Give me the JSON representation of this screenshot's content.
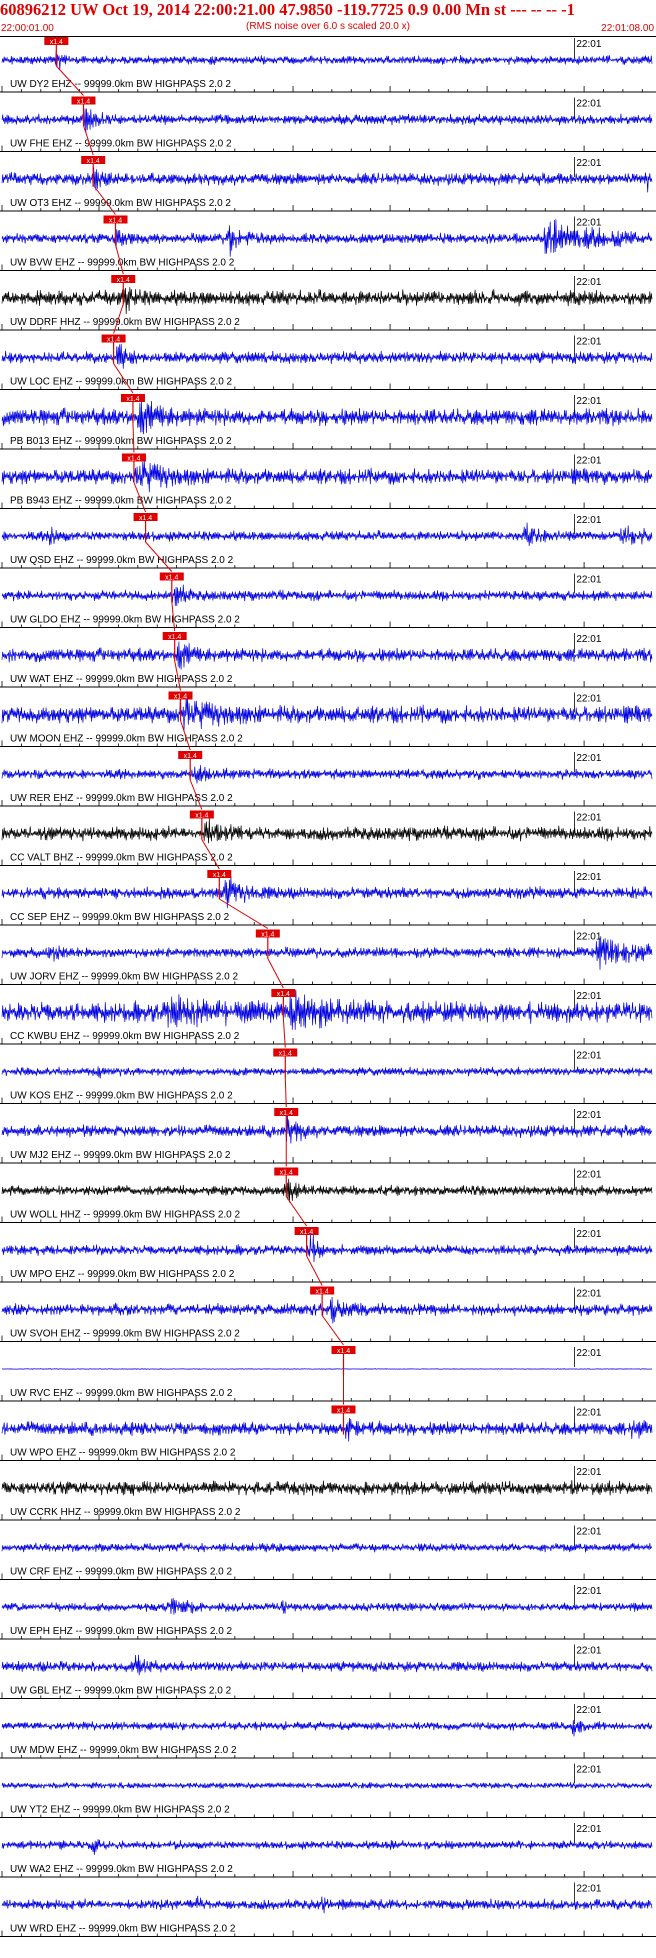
{
  "header": {
    "title": "60896212 UW Oct 19, 2014 22:00:21.00   47.9850 -119.7725  0.9 0.00 Mn st --- -- --   -1",
    "subtitle": "(RMS noise over 6.0 s scaled 20.0 x)",
    "start_time": "22:00:01.00",
    "end_time": "22:01:08.00"
  },
  "colors": {
    "title": "#e00000",
    "trace_blue": "#0000e0",
    "trace_black": "#000000",
    "pick": "#e00000",
    "axis": "#000000"
  },
  "chart_data": {
    "type": "line",
    "x_range_seconds": [
      0,
      67
    ],
    "tick_minor_seconds": 2,
    "tick_major_seconds": 10,
    "minute_mark_label": "22:01",
    "minute_mark_seconds": 59,
    "pick_label": "x1.4",
    "traces": [
      {
        "label": "UW DY2 EHZ -- 99999.0km BW  HIGHPASS  2.0  2",
        "color": "blue",
        "pick_seconds": 5.6,
        "amp": 0.25,
        "events": [
          {
            "t": 5.6,
            "a": 0.9,
            "w": 0.6
          }
        ]
      },
      {
        "label": "UW FHE EHZ -- 99999.0km BW  HIGHPASS  2.0  2",
        "color": "blue",
        "pick_seconds": 8.4,
        "amp": 0.3,
        "events": [
          {
            "t": 8.6,
            "a": 0.9,
            "w": 1.0
          }
        ]
      },
      {
        "label": "UW OT3 EHZ -- 99999.0km BW  HIGHPASS  2.0  2",
        "color": "blue",
        "pick_seconds": 9.4,
        "amp": 0.35,
        "events": [
          {
            "t": 9.5,
            "a": 0.95,
            "w": 1.0
          },
          {
            "t": 66.5,
            "a": 0.6,
            "w": 0.4
          }
        ]
      },
      {
        "label": "UW BVW EHZ -- 99999.0km BW  HIGHPASS  2.0  2",
        "color": "blue",
        "pick_seconds": 11.7,
        "amp": 0.3,
        "events": [
          {
            "t": 11.8,
            "a": 0.8,
            "w": 1.0
          },
          {
            "t": 23.5,
            "a": 0.95,
            "w": 1.2
          },
          {
            "t": 56,
            "a": 0.9,
            "w": 7.0
          }
        ]
      },
      {
        "label": "UW DDRF HHZ -- 99999.0km BW  HIGHPASS  2.0  2",
        "color": "black",
        "pick_seconds": 12.5,
        "amp": 0.45,
        "events": [
          {
            "t": 12.6,
            "a": 1.0,
            "w": 0.8
          }
        ]
      },
      {
        "label": "UW LOC EHZ -- 99999.0km BW  HIGHPASS  2.0  2",
        "color": "blue",
        "pick_seconds": 11.5,
        "amp": 0.35,
        "events": [
          {
            "t": 12.0,
            "a": 0.9,
            "w": 1.0
          }
        ]
      },
      {
        "label": "PB B013 EHZ -- 99999.0km BW  HIGHPASS  2.0  2",
        "color": "blue",
        "pick_seconds": 13.5,
        "amp": 0.5,
        "events": [
          {
            "t": 14.0,
            "a": 1.0,
            "w": 2.5
          }
        ]
      },
      {
        "label": "PB B943 EHZ -- 99999.0km BW  HIGHPASS  2.0  2",
        "color": "blue",
        "pick_seconds": 13.6,
        "amp": 0.45,
        "events": [
          {
            "t": 14.0,
            "a": 1.0,
            "w": 2.5
          }
        ]
      },
      {
        "label": "UW QSD EHZ -- 99999.0km BW  HIGHPASS  2.0  2",
        "color": "blue",
        "pick_seconds": 14.8,
        "amp": 0.3,
        "events": [
          {
            "t": 5.0,
            "a": 0.5,
            "w": 0.8
          },
          {
            "t": 54,
            "a": 0.6,
            "w": 1.5
          },
          {
            "t": 64,
            "a": 0.85,
            "w": 2.0
          }
        ]
      },
      {
        "label": "UW GLDO EHZ -- 99999.0km BW  HIGHPASS  2.0  2",
        "color": "blue",
        "pick_seconds": 17.5,
        "amp": 0.3,
        "events": [
          {
            "t": 17.8,
            "a": 1.0,
            "w": 1.0
          }
        ]
      },
      {
        "label": "UW WAT EHZ -- 99999.0km BW  HIGHPASS  2.0  2",
        "color": "blue",
        "pick_seconds": 17.8,
        "amp": 0.4,
        "events": [
          {
            "t": 18.2,
            "a": 0.8,
            "w": 1.5
          }
        ]
      },
      {
        "label": "UW MOON EHZ -- 99999.0km BW  HIGHPASS  2.0  2",
        "color": "blue",
        "pick_seconds": 18.4,
        "amp": 0.5,
        "events": [
          {
            "t": 18.5,
            "a": 1.0,
            "w": 3.0
          }
        ]
      },
      {
        "label": "UW RER EHZ -- 99999.0km BW  HIGHPASS  2.0  2",
        "color": "blue",
        "pick_seconds": 19.4,
        "amp": 0.3,
        "events": [
          {
            "t": 20,
            "a": 0.5,
            "w": 2.0
          }
        ]
      },
      {
        "label": "CC VALT BHZ -- 99999.0km BW  HIGHPASS  2.0  2",
        "color": "black",
        "pick_seconds": 20.6,
        "amp": 0.4,
        "events": [
          {
            "t": 21.0,
            "a": 0.8,
            "w": 1.5
          }
        ]
      },
      {
        "label": "CC SEP EHZ -- 99999.0km BW  HIGHPASS  2.0  2",
        "color": "blue",
        "pick_seconds": 22.4,
        "amp": 0.35,
        "events": [
          {
            "t": 23.0,
            "a": 0.9,
            "w": 2.0
          }
        ]
      },
      {
        "label": "UW JORV EHZ -- 99999.0km BW  HIGHPASS  2.0  2",
        "color": "blue",
        "pick_seconds": 27.4,
        "amp": 0.3,
        "events": [
          {
            "t": 5.0,
            "a": 0.4,
            "w": 1.5
          },
          {
            "t": 61,
            "a": 1.0,
            "w": 4.5
          }
        ]
      },
      {
        "label": "CC KWBU EHZ -- 99999.0km BW  HIGHPASS  2.0  2",
        "color": "blue",
        "pick_seconds": 29.0,
        "amp": 0.6,
        "events": [
          {
            "t": 29.5,
            "a": 1.0,
            "w": 4.0
          },
          {
            "t": 17,
            "a": 0.7,
            "w": 6.0
          }
        ]
      },
      {
        "label": "UW KOS EHZ -- 99999.0km BW  HIGHPASS  2.0  2",
        "color": "blue",
        "pick_seconds": 29.2,
        "amp": 0.25,
        "events": [
          {
            "t": 10,
            "a": 0.4,
            "w": 0.3
          }
        ]
      },
      {
        "label": "UW MJ2 EHZ -- 99999.0km BW  HIGHPASS  2.0  2",
        "color": "blue",
        "pick_seconds": 29.3,
        "amp": 0.35,
        "events": [
          {
            "t": 29.4,
            "a": 0.9,
            "w": 1.2
          }
        ]
      },
      {
        "label": "UW WOLL HHZ -- 99999.0km BW  HIGHPASS  2.0  2",
        "color": "black",
        "pick_seconds": 29.3,
        "amp": 0.3,
        "events": [
          {
            "t": 29.4,
            "a": 0.7,
            "w": 1.0
          }
        ]
      },
      {
        "label": "UW MPO EHZ -- 99999.0km BW  HIGHPASS  2.0  2",
        "color": "blue",
        "pick_seconds": 31.4,
        "amp": 0.3,
        "events": [
          {
            "t": 31.8,
            "a": 1.0,
            "w": 1.0
          }
        ]
      },
      {
        "label": "UW SVOH EHZ -- 99999.0km BW  HIGHPASS  2.0  2",
        "color": "blue",
        "pick_seconds": 33.0,
        "amp": 0.35,
        "events": [
          {
            "t": 33.8,
            "a": 0.6,
            "w": 1.5
          }
        ]
      },
      {
        "label": "UW RVC EHZ -- 99999.0km BW  HIGHPASS  2.0  2",
        "color": "blue",
        "pick_seconds": 35.2,
        "amp": 0.02,
        "events": []
      },
      {
        "label": "UW WPO EHZ -- 99999.0km BW  HIGHPASS  2.0  2",
        "color": "blue",
        "pick_seconds": 35.2,
        "amp": 0.4,
        "events": [
          {
            "t": 35.5,
            "a": 0.7,
            "w": 1.5
          },
          {
            "t": 65,
            "a": 0.5,
            "w": 1.5
          }
        ]
      },
      {
        "label": "UW CCRK HHZ -- 99999.0km BW  HIGHPASS  2.0  2",
        "color": "black",
        "pick_seconds": null,
        "amp": 0.4,
        "events": []
      },
      {
        "label": "UW CRF EHZ -- 99999.0km BW  HIGHPASS  2.0  2",
        "color": "blue",
        "pick_seconds": null,
        "amp": 0.25,
        "events": []
      },
      {
        "label": "UW EPH EHZ -- 99999.0km BW  HIGHPASS  2.0  2",
        "color": "blue",
        "pick_seconds": null,
        "amp": 0.25,
        "events": [
          {
            "t": 17.5,
            "a": 0.5,
            "w": 2.0
          },
          {
            "t": 29,
            "a": 0.8,
            "w": 0.3
          }
        ]
      },
      {
        "label": "UW GBL EHZ -- 99999.0km BW  HIGHPASS  2.0  2",
        "color": "blue",
        "pick_seconds": null,
        "amp": 0.3,
        "events": [
          {
            "t": 13.8,
            "a": 0.9,
            "w": 0.8
          }
        ]
      },
      {
        "label": "UW MDW EHZ -- 99999.0km BW  HIGHPASS  2.0  2",
        "color": "blue",
        "pick_seconds": null,
        "amp": 0.25,
        "events": [
          {
            "t": 59,
            "a": 0.7,
            "w": 0.8
          }
        ]
      },
      {
        "label": "UW YT2 EHZ -- 99999.0km BW  HIGHPASS  2.0  2",
        "color": "blue",
        "pick_seconds": null,
        "amp": 0.18,
        "events": []
      },
      {
        "label": "UW WA2 EHZ -- 99999.0km BW  HIGHPASS  2.0  2",
        "color": "blue",
        "pick_seconds": null,
        "amp": 0.25,
        "events": [
          {
            "t": 9.5,
            "a": 0.5,
            "w": 0.6
          },
          {
            "t": 40,
            "a": 0.4,
            "w": 0.4
          }
        ]
      },
      {
        "label": "UW WRD EHZ -- 99999.0km BW  HIGHPASS  2.0  2",
        "color": "blue",
        "pick_seconds": null,
        "amp": 0.3,
        "events": [
          {
            "t": 20,
            "a": 0.6,
            "w": 0.4
          },
          {
            "t": 33,
            "a": 0.5,
            "w": 0.4
          }
        ]
      }
    ]
  }
}
